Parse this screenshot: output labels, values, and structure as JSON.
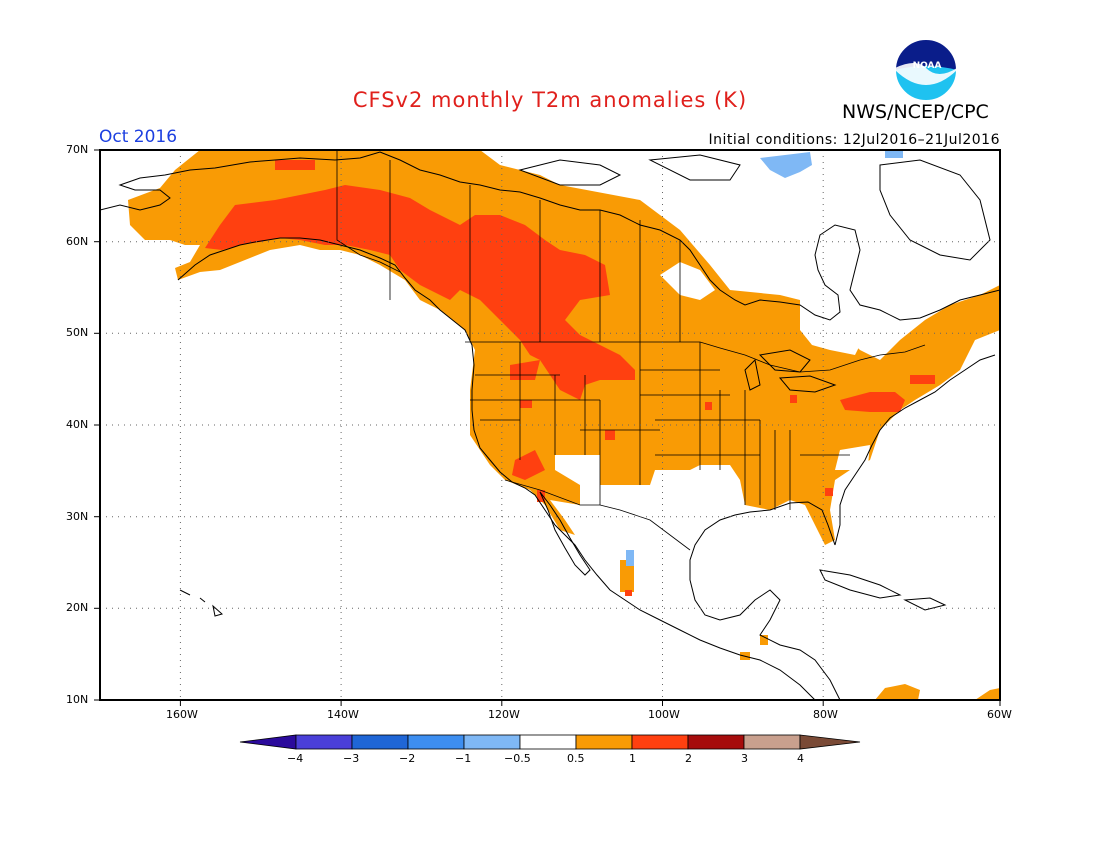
{
  "title": "CFSv2 monthly T2m anomalies (K)",
  "agency": "NWS/NCEP/CPC",
  "logo_text": "NOAA",
  "valid_month": "Oct 2016",
  "initial_conditions": "Initial conditions: 12Jul2016–21Jul2016",
  "map": {
    "projection": "cylindrical equidistant",
    "lon_range": [
      -172,
      -60
    ],
    "lat_range": [
      10,
      70
    ],
    "lat_ticks": [
      {
        "value": 70,
        "label": "70N"
      },
      {
        "value": 60,
        "label": "60N"
      },
      {
        "value": 50,
        "label": "50N"
      },
      {
        "value": 40,
        "label": "40N"
      },
      {
        "value": 30,
        "label": "30N"
      },
      {
        "value": 20,
        "label": "20N"
      },
      {
        "value": 10,
        "label": "10N"
      }
    ],
    "lon_ticks": [
      {
        "value": -160,
        "label": "160W"
      },
      {
        "value": -140,
        "label": "140W"
      },
      {
        "value": -120,
        "label": "120W"
      },
      {
        "value": -100,
        "label": "100W"
      },
      {
        "value": -80,
        "label": "80W"
      },
      {
        "value": -60,
        "label": "60W"
      }
    ],
    "grid": "dotted"
  },
  "colorbar": {
    "labels": [
      "−4",
      "−3",
      "−2",
      "−1",
      "−0.5",
      "0.5",
      "1",
      "2",
      "3",
      "4"
    ],
    "colors": [
      "#2b0a9c",
      "#4a3fd8",
      "#1f66d6",
      "#3d8ef0",
      "#7fb8f5",
      "#ffffff",
      "#f99b05",
      "#ff4010",
      "#a60c0c",
      "#c9a08e",
      "#7a4a36"
    ]
  }
}
